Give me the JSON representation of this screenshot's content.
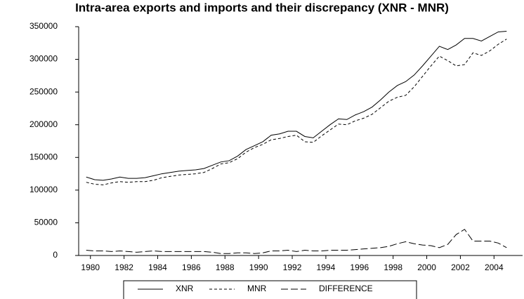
{
  "chart_data": {
    "type": "line",
    "title": "Intra-area exports and imports and their discrepancy (XNR - MNR)",
    "x": [
      1979.75,
      1980.25,
      1980.75,
      1981.25,
      1981.75,
      1982.25,
      1982.75,
      1983.25,
      1983.75,
      1984.25,
      1984.75,
      1985.25,
      1985.75,
      1986.25,
      1986.75,
      1987.25,
      1987.75,
      1988.25,
      1988.75,
      1989.25,
      1989.75,
      1990.25,
      1990.75,
      1991.25,
      1991.75,
      1992.25,
      1992.75,
      1993.25,
      1993.75,
      1994.25,
      1994.75,
      1995.25,
      1995.75,
      1996.25,
      1996.75,
      1997.25,
      1997.75,
      1998.25,
      1998.75,
      1999.25,
      1999.75,
      2000.25,
      2000.75,
      2001.25,
      2001.75,
      2002.25,
      2002.75,
      2003.25,
      2003.75,
      2004.25,
      2004.75
    ],
    "series": [
      {
        "name": "XNR",
        "color": "#000000",
        "dash": "none",
        "values": [
          120000,
          116000,
          115000,
          117000,
          120000,
          118000,
          118000,
          119000,
          122000,
          125000,
          127000,
          129000,
          130000,
          131000,
          133000,
          138000,
          143000,
          145000,
          152000,
          162000,
          168000,
          174000,
          184000,
          186000,
          190000,
          190000,
          182000,
          180000,
          190000,
          200000,
          209000,
          208000,
          215000,
          220000,
          227000,
          238000,
          250000,
          260000,
          266000,
          276000,
          290000,
          305000,
          320000,
          315000,
          322000,
          332000,
          332000,
          328000,
          335000,
          342000,
          343000
        ]
      },
      {
        "name": "MNR",
        "color": "#000000",
        "dash": "4,3",
        "values": [
          112000,
          109000,
          108000,
          111000,
          113000,
          112000,
          113000,
          113000,
          115000,
          119000,
          121000,
          123000,
          124000,
          125000,
          127000,
          133000,
          140000,
          142000,
          148000,
          158000,
          165000,
          170000,
          177000,
          179000,
          182000,
          184000,
          174000,
          173000,
          183000,
          192000,
          201000,
          200000,
          206000,
          210000,
          216000,
          226000,
          236000,
          242000,
          245000,
          258000,
          274000,
          290000,
          305000,
          298000,
          290000,
          292000,
          310000,
          306000,
          313000,
          323000,
          331000
        ]
      },
      {
        "name": "DIFFERENCE",
        "color": "#000000",
        "dash": "10,4",
        "values": [
          8000,
          7000,
          7000,
          6000,
          7000,
          6000,
          5000,
          6000,
          7000,
          6000,
          6000,
          6000,
          6000,
          6000,
          6000,
          5000,
          3000,
          3000,
          4000,
          4000,
          3000,
          4000,
          7000,
          7000,
          8000,
          6000,
          8000,
          7000,
          7000,
          8000,
          8000,
          8000,
          9000,
          10000,
          11000,
          12000,
          14000,
          18000,
          21000,
          18000,
          16000,
          15000,
          12000,
          17000,
          32000,
          40000,
          22000,
          22000,
          22000,
          19000,
          12000
        ]
      }
    ],
    "xlim": [
      1979.3,
      2005.7
    ],
    "xticks": [
      1980,
      1982,
      1984,
      1986,
      1988,
      1990,
      1992,
      1994,
      1996,
      1998,
      2000,
      2002,
      2004
    ],
    "ylim": [
      0,
      350000
    ],
    "yticks": [
      0,
      50000,
      100000,
      150000,
      200000,
      250000,
      300000,
      350000
    ],
    "legend": "bottom"
  }
}
